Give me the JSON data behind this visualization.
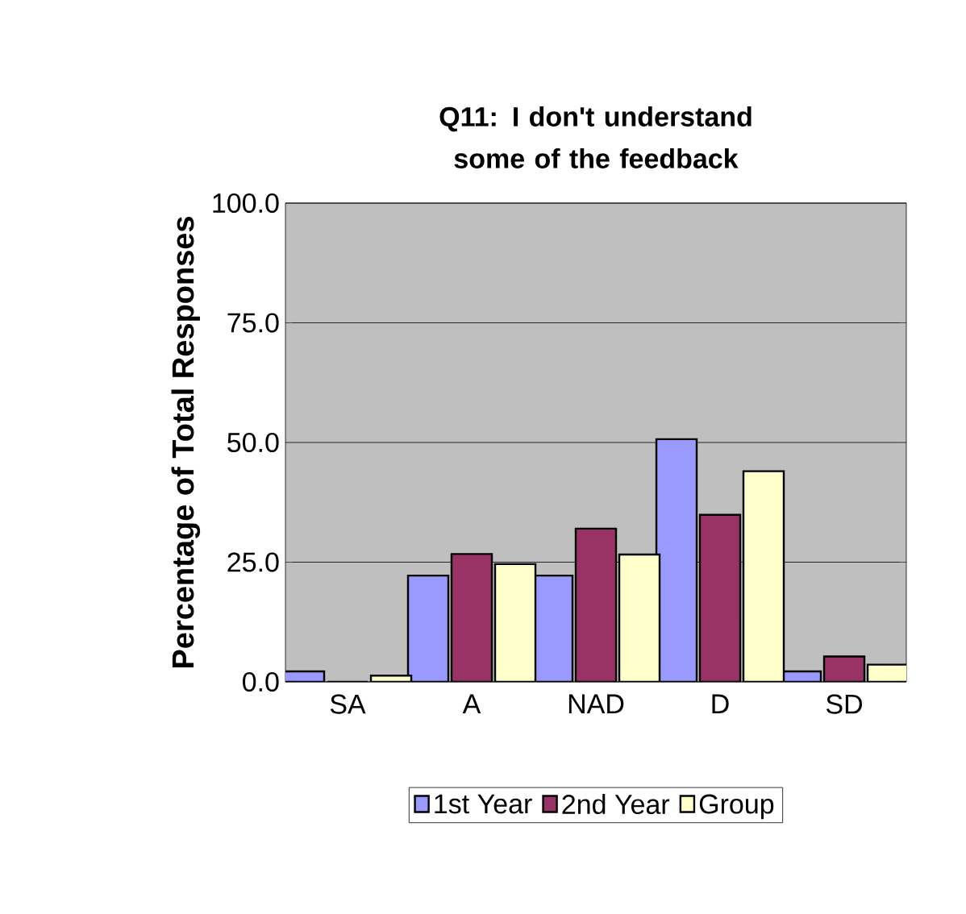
{
  "chart_data": {
    "type": "bar",
    "title": "Q11: I don't understand some of the feedback",
    "ylabel": "Percentage of Total Responses",
    "categories": [
      "SA",
      "A",
      "NAD",
      "D",
      "SD"
    ],
    "series": [
      {
        "name": "1st Year",
        "color": "#9999ff",
        "values": [
          2.2,
          22.2,
          22.2,
          50.7,
          2.2
        ]
      },
      {
        "name": "2nd Year",
        "color": "#993366",
        "values": [
          0,
          26.7,
          32.0,
          34.9,
          5.3
        ]
      },
      {
        "name": "Group",
        "color": "#ffffcc",
        "values": [
          1.3,
          24.6,
          26.6,
          44.0,
          3.6
        ]
      }
    ],
    "ylim": [
      0,
      100
    ],
    "yticks": [
      {
        "value": 0,
        "label": "0.0"
      },
      {
        "value": 25,
        "label": "25.0"
      },
      {
        "value": 50,
        "label": "50.0"
      },
      {
        "value": 75,
        "label": "75.0"
      },
      {
        "value": 100,
        "label": "100.0"
      }
    ],
    "grid": "y",
    "legend": "bottom"
  }
}
